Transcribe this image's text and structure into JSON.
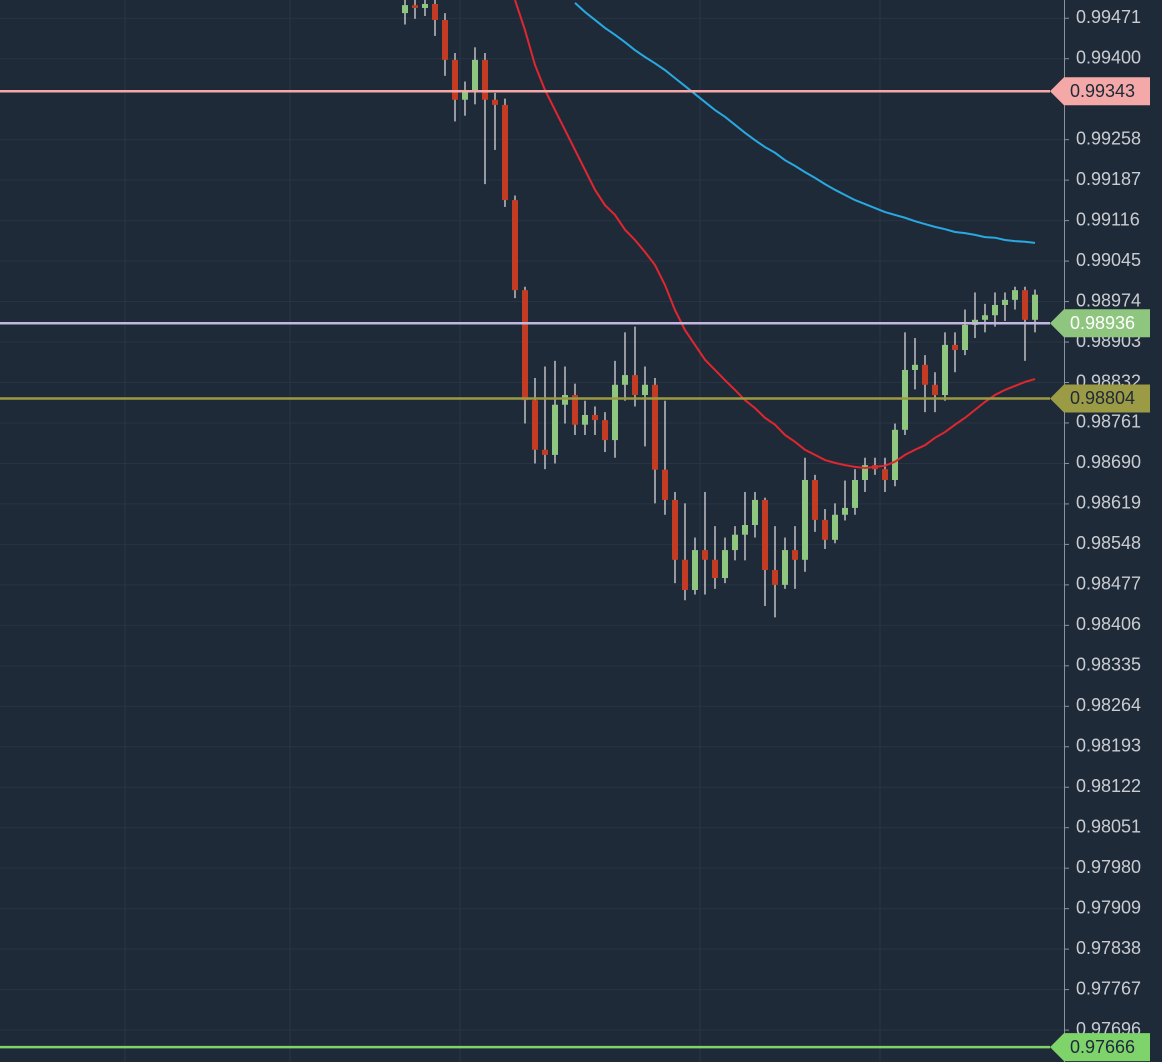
{
  "chart_data": {
    "type": "candlestick",
    "up_color": "#8fc67f",
    "down_color": "#c23b22",
    "wick_color": "#e6e6e6",
    "ylim": [
      0.9764,
      0.99503
    ],
    "yticks": [
      0.99471,
      {
        "value": 0.994,
        "label": "0.99400"
      },
      0.99258,
      0.99187,
      0.99116,
      0.99045,
      0.98974,
      0.98903,
      0.98832,
      0.98761,
      {
        "value": 0.9869,
        "label": "0.98690"
      },
      0.98619,
      0.98548,
      0.98477,
      0.98406,
      0.98335,
      0.98264,
      0.98193,
      0.98122,
      0.98051,
      {
        "value": 0.9798,
        "label": "0.97980"
      },
      0.97909,
      0.97838,
      0.97767,
      0.97696
    ],
    "grid": true,
    "open": [
      0.9948,
      0.99494,
      0.99489,
      0.99496,
      0.99468,
      0.99398,
      0.99328,
      0.99345,
      0.99398,
      0.99328,
      0.99319,
      0.99152,
      0.98994,
      0.98801,
      0.98714,
      0.98705,
      0.98793,
      0.9881,
      0.98758,
      0.98775,
      0.98766,
      0.98731,
      0.98828,
      0.98845,
      0.9881,
      0.98828,
      0.98679,
      0.98626,
      0.98521,
      0.98468,
      0.98538,
      0.98521,
      0.98489,
      0.98538,
      0.98565,
      0.98582,
      0.98626,
      0.98503,
      0.98477,
      0.98538,
      0.98521,
      0.98661,
      0.98591,
      0.98556,
      0.986,
      0.98612,
      0.98661,
      0.98687,
      0.9868,
      0.98661,
      0.98749,
      0.98854,
      0.98863,
      0.98828,
      0.9881,
      0.98898,
      0.98889,
      0.98933,
      0.98942,
      0.9895,
      0.98968,
      0.98977,
      0.98994,
      0.98942
    ],
    "high": [
      0.99503,
      0.99503,
      0.99503,
      0.99503,
      0.9948,
      0.9941,
      0.9936,
      0.9942,
      0.9941,
      0.9934,
      0.9933,
      0.9916,
      0.99,
      0.9884,
      0.9886,
      0.9887,
      0.9886,
      0.9883,
      0.988,
      0.9879,
      0.9878,
      0.9887,
      0.9892,
      0.9893,
      0.9886,
      0.9884,
      0.988,
      0.9864,
      0.9862,
      0.9856,
      0.9864,
      0.9858,
      0.9856,
      0.9858,
      0.9864,
      0.9864,
      0.9863,
      0.9858,
      0.9856,
      0.9858,
      0.987,
      0.9867,
      0.9861,
      0.9862,
      0.9866,
      0.9868,
      0.987,
      0.987,
      0.987,
      0.9876,
      0.9892,
      0.9891,
      0.9888,
      0.9885,
      0.9892,
      0.9892,
      0.9896,
      0.9899,
      0.9897,
      0.9899,
      0.9899,
      0.99,
      0.99,
      0.98995
    ],
    "low": [
      0.9946,
      0.9947,
      0.99475,
      0.9944,
      0.9937,
      0.9929,
      0.993,
      0.9932,
      0.9918,
      0.9924,
      0.9914,
      0.9898,
      0.9876,
      0.9869,
      0.9868,
      0.9869,
      0.9876,
      0.9874,
      0.9874,
      0.9874,
      0.9871,
      0.987,
      0.988,
      0.9879,
      0.9872,
      0.9862,
      0.986,
      0.9848,
      0.9845,
      0.9846,
      0.9846,
      0.9847,
      0.9848,
      0.9852,
      0.9852,
      0.9856,
      0.9844,
      0.9842,
      0.9847,
      0.9847,
      0.985,
      0.9857,
      0.9854,
      0.9855,
      0.9859,
      0.986,
      0.9864,
      0.9867,
      0.9864,
      0.9865,
      0.9874,
      0.9882,
      0.9878,
      0.9878,
      0.988,
      0.9885,
      0.9888,
      0.9891,
      0.9892,
      0.9893,
      0.9894,
      0.9896,
      0.9887,
      0.9892
    ],
    "close": [
      0.99494,
      0.99489,
      0.99496,
      0.99468,
      0.99398,
      0.99328,
      0.99345,
      0.99398,
      0.99328,
      0.99319,
      0.99152,
      0.98994,
      0.98801,
      0.98714,
      0.98705,
      0.98793,
      0.9881,
      0.98758,
      0.98775,
      0.98766,
      0.98731,
      0.98828,
      0.98845,
      0.9881,
      0.98828,
      0.98679,
      0.98626,
      0.98521,
      0.98468,
      0.98538,
      0.98521,
      0.98489,
      0.98538,
      0.98565,
      0.98582,
      0.98626,
      0.98503,
      0.98477,
      0.98538,
      0.98521,
      0.98661,
      0.98591,
      0.98556,
      0.986,
      0.98612,
      0.98661,
      0.98687,
      0.9868,
      0.98661,
      0.98749,
      0.98854,
      0.98863,
      0.98828,
      0.9881,
      0.98898,
      0.98889,
      0.98933,
      0.98942,
      0.9895,
      0.98968,
      0.98977,
      0.98994,
      0.98942,
      0.98986
    ],
    "lines": [
      {
        "color": "#e0262f",
        "values": [
          null,
          null,
          null,
          null,
          null,
          null,
          null,
          null,
          null,
          null,
          null,
          0.99503,
          0.9945,
          0.99389,
          0.99345,
          0.9931,
          0.99275,
          0.9924,
          0.99205,
          0.9917,
          0.99143,
          0.99126,
          0.991,
          0.99082,
          0.99061,
          0.99038,
          0.99003,
          0.98959,
          0.98924,
          0.98898,
          0.98872,
          0.98854,
          0.98836,
          0.98819,
          0.98801,
          0.98787,
          0.9877,
          0.98758,
          0.9874,
          0.98728,
          0.98714,
          0.98705,
          0.98696,
          0.98691,
          0.98687,
          0.98684,
          0.98682,
          0.98684,
          0.98686,
          0.98693,
          0.98705,
          0.98714,
          0.98722,
          0.98735,
          0.98745,
          0.98758,
          0.9877,
          0.98784,
          0.98798,
          0.9881,
          0.98819,
          0.98826,
          0.98833,
          0.98838
        ]
      },
      {
        "color": "#29a9e1",
        "values": [
          null,
          null,
          null,
          null,
          null,
          null,
          null,
          null,
          null,
          null,
          null,
          null,
          null,
          null,
          null,
          null,
          null,
          0.99498,
          0.99482,
          0.99468,
          0.99454,
          0.99442,
          0.99429,
          0.99415,
          0.99403,
          0.99392,
          0.9938,
          0.99366,
          0.99352,
          0.99338,
          0.99324,
          0.9931,
          0.99298,
          0.99284,
          0.9927,
          0.99257,
          0.99245,
          0.99235,
          0.99222,
          0.99212,
          0.99201,
          0.99191,
          0.9918,
          0.9917,
          0.99161,
          0.99152,
          0.99145,
          0.99138,
          0.99131,
          0.99126,
          0.99121,
          0.99115,
          0.9911,
          0.99105,
          0.99101,
          0.99096,
          0.99094,
          0.99091,
          0.99087,
          0.99086,
          0.99082,
          0.9908,
          0.99079,
          0.99077
        ]
      }
    ],
    "price_lines": [
      {
        "value": 0.99343,
        "color": "#f4a9a8",
        "label_color": "#f4a9a8",
        "text_color": "#1f2a38"
      },
      {
        "value": 0.98936,
        "color": "#c3b6e0",
        "label_color": "#8fc67f",
        "text_color": "#ffffff"
      },
      {
        "value": 0.98804,
        "color": "#9a9a40",
        "label_color": "#9b9b45",
        "text_color": "#1f2a38"
      },
      {
        "value": 0.97666,
        "color": "#7ed36a",
        "label_color": "#7ed36a",
        "text_color": "#1f2a38"
      }
    ]
  }
}
